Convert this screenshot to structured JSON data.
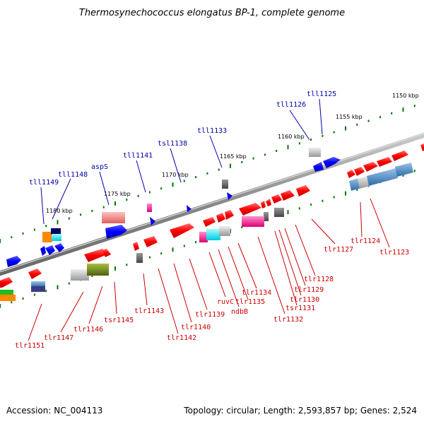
{
  "title": "Thermosynechococcus elongatus BP-1, complete genome",
  "footer": {
    "accession": "Accession: NC_004113",
    "topology": "Topology: circular; Length: 2,593,857 bp; Genes: 2,524"
  },
  "scale_labels": [
    "1150 kbp",
    "1155 kbp",
    "1160 kbp",
    "1165 kbp",
    "1170 kbp",
    "1175 kbp",
    "1180 kbp"
  ],
  "upper_gene_labels": [
    "tll1125",
    "tll1126",
    "tll1133",
    "tsl1138",
    "tll1141",
    "aspS",
    "tll1148",
    "tll1149"
  ],
  "lower_gene_labels": [
    "tlr1123",
    "tlr1124",
    "tlr1127",
    "tlr1128",
    "tlr1129",
    "tlr1130",
    "tsr1131",
    "tlr1132",
    "tlr1134",
    "tlr1135",
    "ruvC",
    "ndbB",
    "tlr1139",
    "tlr1140",
    "tlr1142",
    "tlr1143",
    "tsr1145",
    "tlr1146",
    "tlr1147",
    "tlr1151"
  ],
  "colors": {
    "forward_strand": "#ff0000",
    "reverse_strand": "#0000ff",
    "axis": "#999999",
    "tick": "#007700",
    "upper_label": "#0000aa",
    "lower_label": "#cc0000"
  }
}
